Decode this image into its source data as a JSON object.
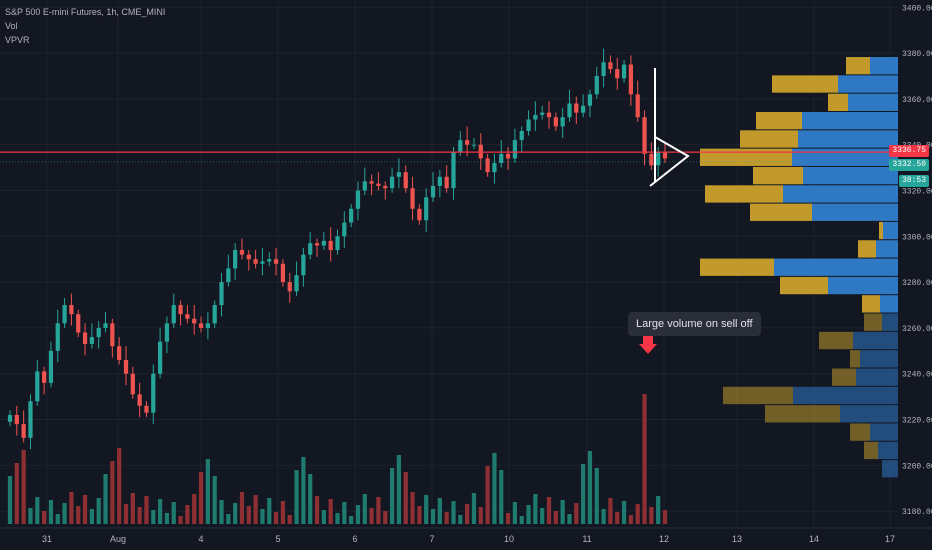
{
  "header": {
    "symbol": "S&P 500 E-mini Futures, 1h, CME_MINI",
    "indicator_1": "Vol",
    "indicator_2": "VPVR"
  },
  "annotation": {
    "text": "Large volume on sell off"
  },
  "price_tags": {
    "last_price": "3336.75",
    "secondary_price": "3332.50",
    "countdown": "38:53"
  },
  "colors": {
    "background": "#131722",
    "bullish": "#26a69a",
    "bearish": "#ef5350",
    "vol_up": "#1f7a6f",
    "vol_down": "#8e2f33",
    "vpvr_up": "#2f78c4",
    "vpvr_down": "#c19a2b",
    "price_line": "#f23645",
    "arrow": "#f23645"
  },
  "chart_data": {
    "type": "candlestick",
    "title": "S&P 500 E-mini Futures, 1h, CME_MINI",
    "y_ticks": [
      3180,
      3200,
      3220,
      3240,
      3260,
      3280,
      3300,
      3320,
      3340,
      3360,
      3380,
      3400
    ],
    "ylim": [
      3177,
      3401
    ],
    "x_tick_labels": [
      "31",
      "Aug",
      "4",
      "5",
      "6",
      "7",
      "10",
      "11",
      "12",
      "13",
      "14",
      "17"
    ],
    "price_levels": {
      "last": 3336.75,
      "secondary": 3332.5
    },
    "closes": [
      3222,
      3218,
      3212,
      3228,
      3241,
      3236,
      3250,
      3262,
      3270,
      3266,
      3258,
      3253,
      3256,
      3260,
      3262,
      3252,
      3246,
      3240,
      3231,
      3226,
      3223,
      3240,
      3254,
      3262,
      3270,
      3266,
      3264,
      3262,
      3260,
      3262,
      3270,
      3280,
      3286,
      3294,
      3292,
      3290,
      3288,
      3289,
      3290,
      3288,
      3280,
      3276,
      3283,
      3292,
      3297,
      3296,
      3298,
      3294,
      3300,
      3306,
      3312,
      3320,
      3324,
      3323,
      3322,
      3321,
      3326,
      3328,
      3321,
      3312,
      3307,
      3317,
      3322,
      3326,
      3321,
      3337,
      3342,
      3340,
      3340,
      3334,
      3328,
      3332,
      3336,
      3334,
      3342,
      3346,
      3351,
      3353,
      3354,
      3352,
      3348,
      3352,
      3358,
      3354,
      3357,
      3362,
      3370,
      3376,
      3373,
      3369,
      3375,
      3362,
      3352,
      3336,
      3331,
      3337,
      3334
    ],
    "volume_spikes": [
      {
        "bar": 93,
        "note": "Large volume on sell off"
      }
    ],
    "vpvr_levels": [
      3374.5,
      3366.5,
      3358.5,
      3350.5,
      3342.5,
      3334.5,
      3326.5,
      3318.5,
      3310.5,
      3302.5,
      3294.5,
      3286.5,
      3278.5,
      3270.5,
      3262.5,
      3254.5,
      3246.5,
      3238.5,
      3230.5,
      3222.5,
      3214.5,
      3206.5,
      3198.5
    ]
  }
}
